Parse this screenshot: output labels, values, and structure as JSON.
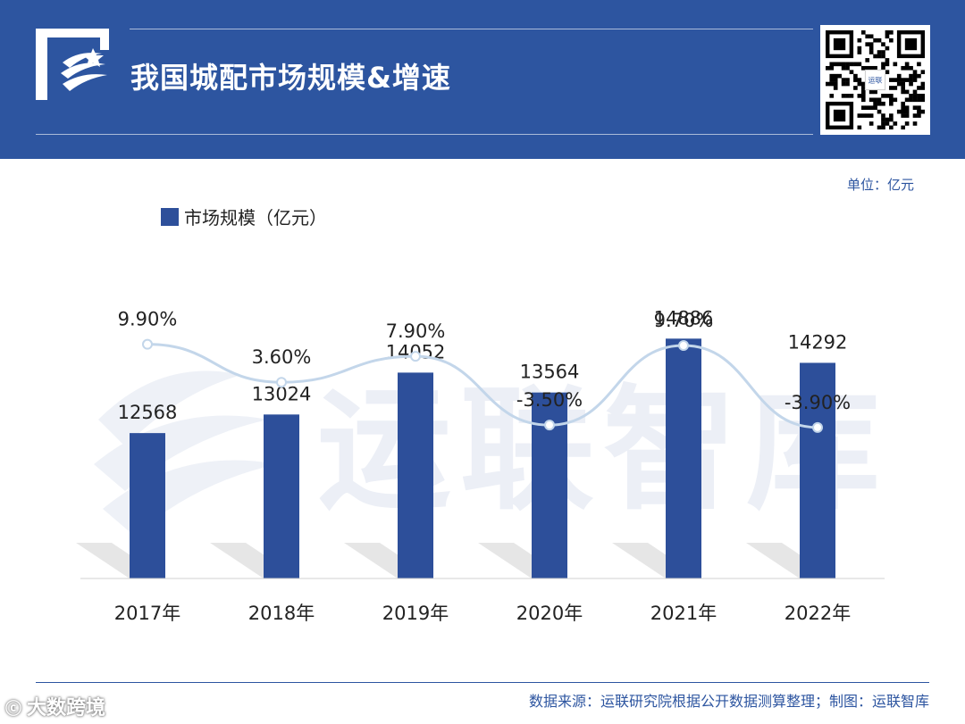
{
  "header": {
    "title": "我国城配市场规模&增速",
    "logo_icon": "swoosh-logo-icon",
    "qr_icon": "qr-code-icon",
    "qr_label": "运联"
  },
  "unit_text": "单位：亿元",
  "watermark_text": "运联智库",
  "footer": {
    "source": "数据来源：运联研究院根据公开数据测算整理；制图：运联智库",
    "brand": "大数跨境",
    "brand_mark": "ⓒ"
  },
  "colors": {
    "header_bg": "#2d55a0",
    "bar": "#2d4f9a",
    "line": "#c3d6ea",
    "point_stroke": "#c3d6ea"
  },
  "chart_data": {
    "type": "bar",
    "categories": [
      "2017年",
      "2018年",
      "2019年",
      "2020年",
      "2021年",
      "2022年"
    ],
    "series": [
      {
        "name": "市场规模（亿元）",
        "type": "bar",
        "values": [
          12568,
          13024,
          14052,
          13564,
          14886,
          14292
        ]
      },
      {
        "name": "",
        "type": "line",
        "values": [
          9.9,
          3.6,
          7.9,
          -3.5,
          9.7,
          -3.9
        ],
        "labels": [
          "9.90%",
          "3.60%",
          "7.90%",
          "-3.50%",
          "9.70%",
          "-3.90%"
        ]
      }
    ],
    "bar_labels": [
      "12568",
      "13024",
      "14052",
      "13564",
      "14886",
      "14292"
    ],
    "legend": "top-left",
    "grid": false
  }
}
